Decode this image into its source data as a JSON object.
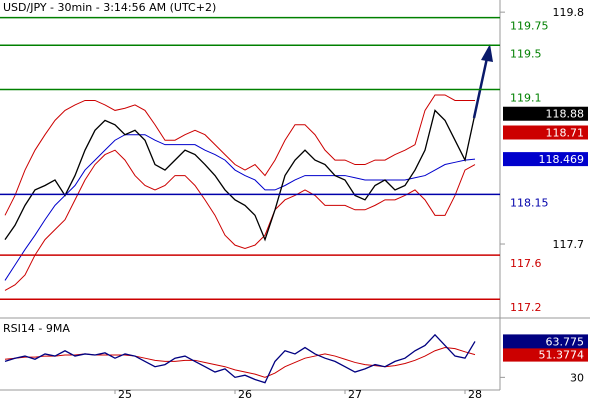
{
  "chart_data": [
    {
      "type": "line",
      "title": "USD/JPY - 30min - 3:14:56 AM (UTC+2)",
      "ylim": [
        117.03,
        119.91
      ],
      "yticks": [
        117.7,
        119.8
      ],
      "series": [
        {
          "color": "#cc0000",
          "values": [
            117.96,
            118.14,
            118.37,
            118.55,
            118.69,
            118.82,
            118.91,
            118.96,
            119.0,
            119.0,
            118.96,
            118.91,
            118.93,
            118.96,
            118.91,
            118.78,
            118.64,
            118.64,
            118.69,
            118.73,
            118.69,
            118.6,
            118.51,
            118.42,
            118.37,
            118.42,
            118.32,
            118.46,
            118.64,
            118.78,
            118.78,
            118.69,
            118.55,
            118.46,
            118.46,
            118.42,
            118.42,
            118.46,
            118.46,
            118.51,
            118.55,
            118.6,
            118.91,
            119.05,
            119.05,
            119.0,
            119.0,
            119.0
          ]
        },
        {
          "color": "#cc0000",
          "values": [
            117.28,
            117.33,
            117.42,
            117.6,
            117.74,
            117.83,
            117.92,
            118.1,
            118.28,
            118.42,
            118.51,
            118.55,
            118.46,
            118.32,
            118.23,
            118.19,
            118.23,
            118.32,
            118.32,
            118.23,
            118.1,
            117.96,
            117.78,
            117.69,
            117.66,
            117.69,
            117.78,
            118.01,
            118.1,
            118.14,
            118.19,
            118.14,
            118.05,
            118.05,
            118.05,
            118.01,
            118.01,
            118.05,
            118.1,
            118.1,
            118.14,
            118.19,
            118.1,
            117.96,
            117.96,
            118.14,
            118.37,
            118.42
          ]
        },
        {
          "color": "#0000cc",
          "values": [
            117.37,
            117.51,
            117.65,
            117.78,
            117.92,
            118.05,
            118.14,
            118.23,
            118.37,
            118.46,
            118.55,
            118.64,
            118.69,
            118.69,
            118.69,
            118.64,
            118.6,
            118.6,
            118.6,
            118.6,
            118.55,
            118.51,
            118.46,
            118.37,
            118.32,
            118.28,
            118.19,
            118.19,
            118.23,
            118.28,
            118.32,
            118.32,
            118.32,
            118.32,
            118.32,
            118.3,
            118.28,
            118.28,
            118.28,
            118.28,
            118.28,
            118.3,
            118.32,
            118.37,
            118.42,
            118.44,
            118.46,
            118.469
          ]
        },
        {
          "color": "#000000",
          "values": [
            117.74,
            117.87,
            118.05,
            118.19,
            118.23,
            118.28,
            118.14,
            118.32,
            118.55,
            118.73,
            118.82,
            118.78,
            118.69,
            118.73,
            118.64,
            118.42,
            118.37,
            118.46,
            118.55,
            118.51,
            118.42,
            118.32,
            118.19,
            118.1,
            118.05,
            117.96,
            117.74,
            118.01,
            118.32,
            118.46,
            118.55,
            118.46,
            118.42,
            118.32,
            118.28,
            118.14,
            118.1,
            118.23,
            118.28,
            118.19,
            118.23,
            118.37,
            118.55,
            118.91,
            118.82,
            118.64,
            118.46,
            118.88
          ]
        }
      ],
      "levels": [
        {
          "value": 119.75,
          "color": "#008000"
        },
        {
          "value": 119.5,
          "color": "#008000"
        },
        {
          "value": 119.1,
          "color": "#008000"
        },
        {
          "value": 118.15,
          "color": "#0000aa"
        },
        {
          "value": 117.6,
          "color": "#cc0000"
        },
        {
          "value": 117.2,
          "color": "#cc0000"
        }
      ],
      "markers": [
        {
          "value": 118.71,
          "color": "#cc0000"
        }
      ]
    },
    {
      "type": "line",
      "title": "RSI14 - 9MA",
      "ylim": [
        20,
        82
      ],
      "yticks": [
        30
      ],
      "categories": [
        null,
        null,
        null,
        null,
        null,
        null,
        null,
        null,
        null,
        null,
        null,
        "25",
        null,
        null,
        null,
        null,
        null,
        null,
        null,
        null,
        null,
        null,
        null,
        "26",
        null,
        null,
        null,
        null,
        null,
        null,
        null,
        null,
        null,
        null,
        "27",
        null,
        null,
        null,
        null,
        null,
        null,
        null,
        null,
        null,
        null,
        null,
        "28",
        null
      ],
      "series": [
        {
          "color": "#cc0000",
          "values": [
            47,
            48,
            49,
            49,
            50,
            50,
            51,
            51,
            52,
            51,
            51,
            51,
            51,
            50,
            48,
            46,
            45,
            45,
            46,
            46,
            44,
            42,
            40,
            37,
            35,
            33,
            30,
            34,
            40,
            44,
            48,
            50,
            52,
            50,
            47,
            44,
            42,
            41,
            40,
            41,
            43,
            46,
            50,
            55,
            58,
            57,
            54,
            51.3774
          ]
        },
        {
          "color": "#000080",
          "values": [
            45,
            48,
            50,
            47,
            52,
            50,
            55,
            50,
            52,
            51,
            53,
            48,
            52,
            50,
            45,
            40,
            42,
            48,
            50,
            45,
            40,
            35,
            38,
            30,
            32,
            28,
            25,
            45,
            55,
            52,
            58,
            52,
            48,
            45,
            40,
            35,
            38,
            42,
            40,
            45,
            48,
            55,
            60,
            70,
            60,
            50,
            48,
            63.775
          ]
        }
      ]
    }
  ]
}
